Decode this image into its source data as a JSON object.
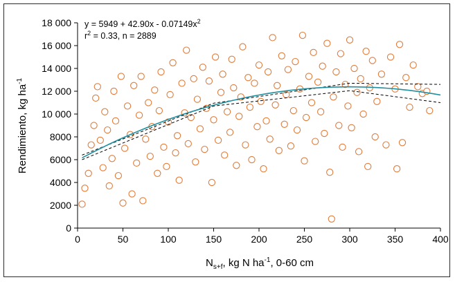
{
  "chart_data": {
    "type": "scatter",
    "xlabel": {
      "base": "N",
      "sub": "s+f",
      "text": ", kg N ha",
      "sup": "-1",
      "tail": ", 0-60 cm"
    },
    "ylabel": {
      "text": "Rendimiento, kg ha",
      "sup": "-1"
    },
    "annotations": {
      "equation": {
        "prefix": "y = 5949 + 42.90x - 0.07149x",
        "sup": "2"
      },
      "stats": {
        "r": "r",
        "sup": "2",
        "rest": " = 0.33, n = 2889"
      }
    },
    "xlim": [
      0,
      400
    ],
    "ylim": [
      0,
      18000
    ],
    "xticks": [
      "0",
      "50",
      "100",
      "150",
      "200",
      "250",
      "300",
      "350",
      "400"
    ],
    "yticks": [
      "0",
      "2000",
      "4000",
      "6000",
      "8000",
      "10 000",
      "12 000",
      "14 000",
      "16 000",
      "18 000"
    ],
    "grid": false,
    "marker_color": "#e07b39",
    "fit_color": "#1f8fa0",
    "ci_color": "#000000",
    "fit": {
      "a": 5949,
      "b": 42.9,
      "c": -0.07149
    },
    "ci_band": [
      {
        "x": 5,
        "lower": 6000,
        "upper": 6400
      },
      {
        "x": 150,
        "lower": 10700,
        "upper": 10950
      },
      {
        "x": 300,
        "lower": 12050,
        "upper": 12700
      },
      {
        "x": 400,
        "lower": 11000,
        "upper": 12600
      }
    ],
    "points": [
      [
        5,
        2100
      ],
      [
        8,
        3500
      ],
      [
        12,
        4800
      ],
      [
        15,
        7300
      ],
      [
        18,
        9000
      ],
      [
        20,
        11400
      ],
      [
        22,
        12400
      ],
      [
        25,
        7700
      ],
      [
        28,
        5300
      ],
      [
        30,
        10200
      ],
      [
        33,
        8600
      ],
      [
        35,
        3700
      ],
      [
        38,
        6100
      ],
      [
        40,
        12000
      ],
      [
        42,
        9400
      ],
      [
        45,
        4600
      ],
      [
        48,
        13300
      ],
      [
        50,
        2200
      ],
      [
        52,
        7000
      ],
      [
        55,
        10700
      ],
      [
        58,
        8200
      ],
      [
        60,
        3000
      ],
      [
        62,
        12500
      ],
      [
        65,
        5700
      ],
      [
        68,
        9900
      ],
      [
        70,
        13300
      ],
      [
        72,
        2400
      ],
      [
        75,
        7800
      ],
      [
        78,
        11000
      ],
      [
        80,
        6300
      ],
      [
        82,
        8900
      ],
      [
        85,
        12100
      ],
      [
        88,
        4800
      ],
      [
        90,
        10300
      ],
      [
        92,
        13700
      ],
      [
        95,
        7100
      ],
      [
        98,
        5400
      ],
      [
        100,
        9300
      ],
      [
        102,
        11700
      ],
      [
        105,
        14500
      ],
      [
        108,
        6600
      ],
      [
        110,
        8100
      ],
      [
        112,
        4200
      ],
      [
        115,
        12700
      ],
      [
        118,
        10100
      ],
      [
        120,
        15600
      ],
      [
        122,
        7400
      ],
      [
        125,
        9700
      ],
      [
        128,
        13100
      ],
      [
        130,
        5800
      ],
      [
        132,
        11300
      ],
      [
        135,
        8700
      ],
      [
        138,
        14100
      ],
      [
        140,
        6900
      ],
      [
        142,
        10500
      ],
      [
        145,
        12900
      ],
      [
        148,
        4000
      ],
      [
        150,
        9500
      ],
      [
        152,
        15000
      ],
      [
        155,
        7700
      ],
      [
        158,
        11900
      ],
      [
        160,
        13500
      ],
      [
        162,
        6400
      ],
      [
        165,
        10200
      ],
      [
        168,
        8400
      ],
      [
        170,
        14800
      ],
      [
        172,
        12300
      ],
      [
        175,
        5500
      ],
      [
        178,
        9800
      ],
      [
        180,
        11500
      ],
      [
        182,
        15900
      ],
      [
        185,
        7300
      ],
      [
        188,
        13200
      ],
      [
        190,
        10600
      ],
      [
        192,
        6000
      ],
      [
        195,
        12700
      ],
      [
        198,
        8900
      ],
      [
        200,
        14300
      ],
      [
        202,
        11100
      ],
      [
        205,
        5200
      ],
      [
        208,
        9400
      ],
      [
        210,
        13700
      ],
      [
        212,
        7800
      ],
      [
        215,
        16700
      ],
      [
        218,
        10800
      ],
      [
        220,
        12500
      ],
      [
        222,
        6800
      ],
      [
        225,
        15100
      ],
      [
        228,
        9100
      ],
      [
        230,
        11700
      ],
      [
        232,
        13900
      ],
      [
        235,
        7200
      ],
      [
        238,
        10300
      ],
      [
        240,
        14600
      ],
      [
        242,
        8600
      ],
      [
        245,
        12200
      ],
      [
        248,
        16900
      ],
      [
        250,
        5900
      ],
      [
        252,
        9700
      ],
      [
        255,
        13300
      ],
      [
        258,
        11000
      ],
      [
        260,
        15400
      ],
      [
        262,
        7600
      ],
      [
        265,
        12800
      ],
      [
        268,
        10200
      ],
      [
        270,
        14200
      ],
      [
        272,
        8300
      ],
      [
        275,
        16200
      ],
      [
        278,
        4900
      ],
      [
        280,
        800
      ],
      [
        282,
        11500
      ],
      [
        285,
        13700
      ],
      [
        288,
        9000
      ],
      [
        290,
        15300
      ],
      [
        292,
        7100
      ],
      [
        295,
        12600
      ],
      [
        298,
        10700
      ],
      [
        300,
        16500
      ],
      [
        302,
        8800
      ],
      [
        305,
        14000
      ],
      [
        308,
        11900
      ],
      [
        310,
        6700
      ],
      [
        312,
        13100
      ],
      [
        315,
        10000
      ],
      [
        318,
        15500
      ],
      [
        320,
        5400
      ],
      [
        322,
        12300
      ],
      [
        325,
        14700
      ],
      [
        328,
        8000
      ],
      [
        330,
        11100
      ],
      [
        335,
        13500
      ],
      [
        340,
        7300
      ],
      [
        345,
        15000
      ],
      [
        350,
        12200
      ],
      [
        352,
        5200
      ],
      [
        355,
        16100
      ],
      [
        358,
        7500
      ],
      [
        362,
        13200
      ],
      [
        366,
        10600
      ],
      [
        370,
        14300
      ],
      [
        375,
        12400
      ],
      [
        380,
        11800
      ],
      [
        385,
        12000
      ],
      [
        388,
        10300
      ]
    ]
  }
}
